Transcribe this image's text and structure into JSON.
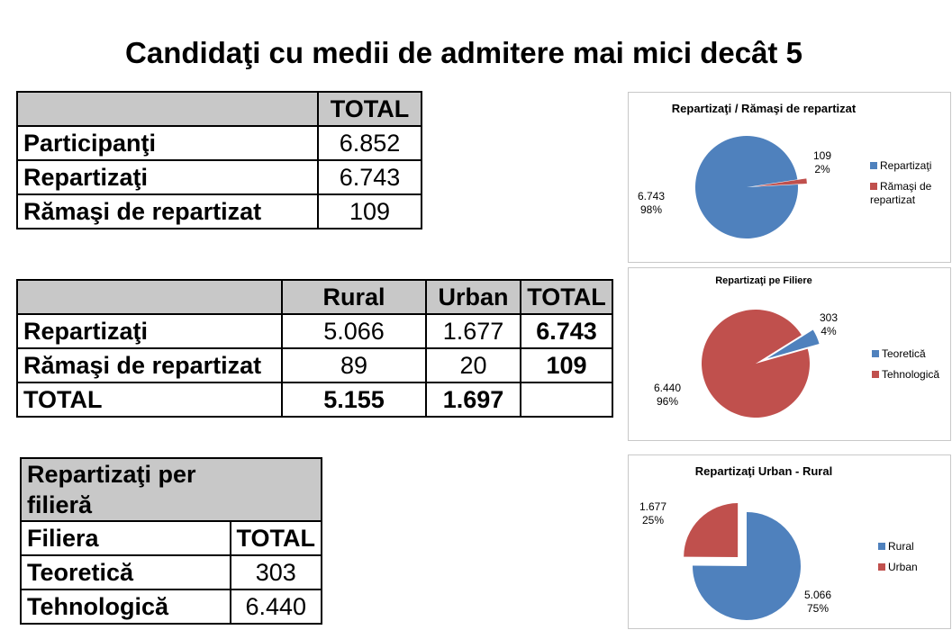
{
  "title": "Candidaţi cu medii de admitere mai mici decât 5",
  "table1": {
    "header": [
      "",
      "TOTAL"
    ],
    "rows": [
      {
        "label": "Participanţi",
        "total": "6.852"
      },
      {
        "label": "Repartizaţi",
        "total": "6.743"
      },
      {
        "label": "Rămaşi de repartizat",
        "total": "109"
      }
    ]
  },
  "table2": {
    "header": [
      "",
      "Rural",
      "Urban",
      "TOTAL"
    ],
    "rows": [
      {
        "label": "Repartizaţi",
        "rural": "5.066",
        "urban": "1.677",
        "total": "6.743"
      },
      {
        "label": "Rămaşi de repartizat",
        "rural": "89",
        "urban": "20",
        "total": "109"
      },
      {
        "label": "TOTAL",
        "rural": "5.155",
        "urban": "1.697",
        "total": ""
      }
    ]
  },
  "table3": {
    "caption": "Repartizaţi per filieră",
    "header": [
      "Filiera",
      "TOTAL"
    ],
    "rows": [
      {
        "label": "Teoretică",
        "total": "303"
      },
      {
        "label": "Tehnologică",
        "total": "6.440"
      }
    ]
  },
  "chart_data": [
    {
      "type": "pie",
      "title": "Repartizaţi / Rămaşi de repartizat",
      "legend": "right",
      "categories": [
        "Repartizaţi",
        "Rămaşi de repartizat"
      ],
      "values": [
        6743,
        109
      ],
      "value_labels": [
        "6.743",
        "109"
      ],
      "percent_labels": [
        "98%",
        "2%"
      ],
      "colors": [
        "#4f81bd",
        "#c0504d"
      ],
      "exploded": [
        false,
        true
      ]
    },
    {
      "type": "pie",
      "title": "Repartizaţi pe Filiere",
      "legend": "right",
      "categories": [
        "Teoretică",
        "Tehnologică"
      ],
      "values": [
        303,
        6440
      ],
      "value_labels": [
        "303",
        "6.440"
      ],
      "percent_labels": [
        "4%",
        "96%"
      ],
      "colors": [
        "#4f81bd",
        "#c0504d"
      ],
      "exploded": [
        true,
        false
      ]
    },
    {
      "type": "pie",
      "title": "Repartizaţi Urban - Rural",
      "legend": "right",
      "categories": [
        "Rural",
        "Urban"
      ],
      "values": [
        5066,
        1677
      ],
      "value_labels": [
        "5.066",
        "1.677"
      ],
      "percent_labels": [
        "75%",
        "25%"
      ],
      "colors": [
        "#4f81bd",
        "#c0504d"
      ],
      "exploded": [
        false,
        true
      ]
    }
  ]
}
